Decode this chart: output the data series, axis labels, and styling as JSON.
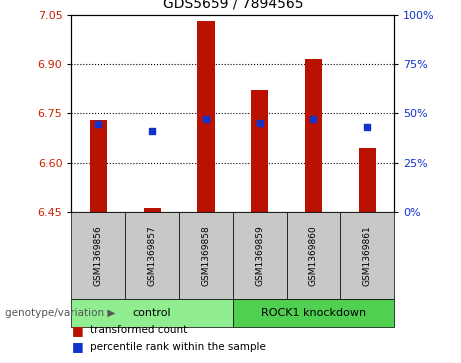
{
  "title": "GDS5659 / 7894565",
  "samples": [
    "GSM1369856",
    "GSM1369857",
    "GSM1369858",
    "GSM1369859",
    "GSM1369860",
    "GSM1369861"
  ],
  "red_bar_tops": [
    6.73,
    6.462,
    7.03,
    6.82,
    6.915,
    6.645
  ],
  "blue_sq_values": [
    6.718,
    6.698,
    6.732,
    6.722,
    6.732,
    6.71
  ],
  "ymin": 6.45,
  "ymax": 7.05,
  "yticks_left": [
    6.45,
    6.6,
    6.75,
    6.9,
    7.05
  ],
  "yticks_right": [
    0,
    25,
    50,
    75,
    100
  ],
  "grid_lines": [
    6.6,
    6.75,
    6.9
  ],
  "groups": [
    {
      "label": "control",
      "indices": [
        0,
        1,
        2
      ],
      "color": "#90ee90"
    },
    {
      "label": "ROCK1 knockdown",
      "indices": [
        3,
        4,
        5
      ],
      "color": "#50d050"
    }
  ],
  "bar_color": "#bb1100",
  "blue_color": "#1133cc",
  "bar_bottom": 6.45,
  "group_label_prefix": "genotype/variation",
  "legend_items": [
    {
      "label": "transformed count",
      "color": "#bb1100"
    },
    {
      "label": "percentile rank within the sample",
      "color": "#1133cc"
    }
  ],
  "tick_color_left": "#cc2200",
  "tick_color_right": "#1133cc",
  "bg_plot": "#ffffff",
  "bg_sample_labels": "#c8c8c8",
  "fig_width": 4.61,
  "fig_height": 3.63,
  "dpi": 100
}
